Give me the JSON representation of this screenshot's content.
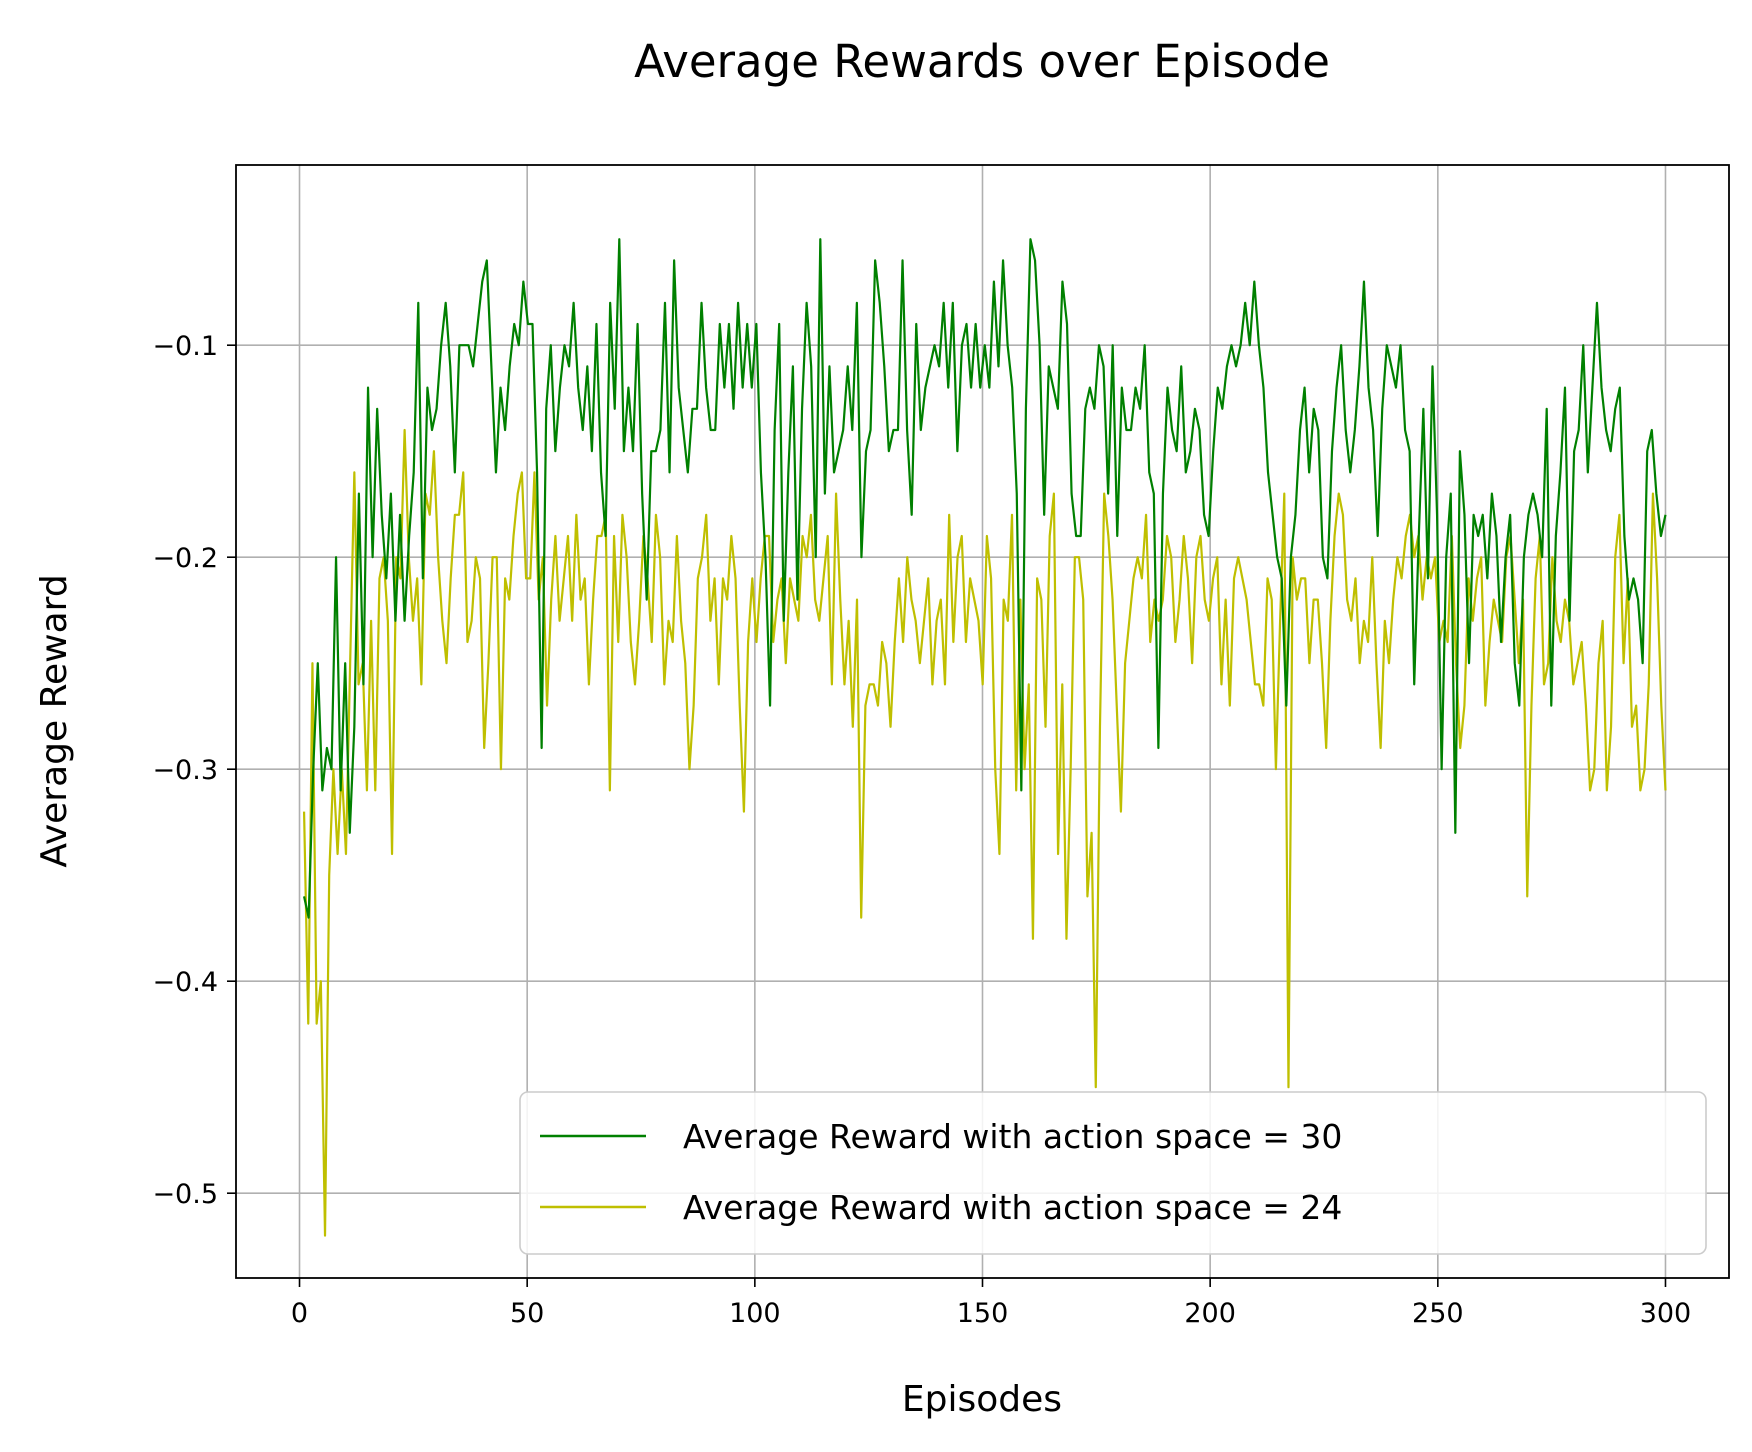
{
  "chart_data": {
    "type": "line",
    "title": "Average Rewards over Episode",
    "xlabel": "Episodes",
    "ylabel": "Average Reward",
    "xlim": [
      -13.95,
      313.95
    ],
    "ylim": [
      -0.54,
      -0.015
    ],
    "x_ticks": [
      0,
      50,
      100,
      150,
      200,
      250,
      300
    ],
    "x_tick_labels": [
      "0",
      "50",
      "100",
      "150",
      "200",
      "250",
      "300"
    ],
    "y_ticks": [
      -0.5,
      -0.4,
      -0.3,
      -0.2,
      -0.1
    ],
    "y_tick_labels": [
      "−0.5",
      "−0.4",
      "−0.3",
      "−0.2",
      "−0.1"
    ],
    "grid": true,
    "legend_position": "lower right",
    "x_start": 1,
    "series": [
      {
        "name": "Average Reward with action space = 30",
        "color": "#008000",
        "values": [
          -0.36,
          -0.37,
          -0.3,
          -0.25,
          -0.31,
          -0.29,
          -0.3,
          -0.2,
          -0.31,
          -0.25,
          -0.33,
          -0.28,
          -0.17,
          -0.26,
          -0.12,
          -0.2,
          -0.13,
          -0.18,
          -0.21,
          -0.17,
          -0.23,
          -0.18,
          -0.23,
          -0.19,
          -0.16,
          -0.08,
          -0.21,
          -0.12,
          -0.14,
          -0.13,
          -0.1,
          -0.08,
          -0.11,
          -0.16,
          -0.1,
          -0.1,
          -0.1,
          -0.11,
          -0.09,
          -0.07,
          -0.06,
          -0.11,
          -0.16,
          -0.12,
          -0.14,
          -0.11,
          -0.09,
          -0.1,
          -0.07,
          -0.09,
          -0.09,
          -0.16,
          -0.29,
          -0.13,
          -0.1,
          -0.15,
          -0.12,
          -0.1,
          -0.11,
          -0.08,
          -0.12,
          -0.14,
          -0.11,
          -0.15,
          -0.09,
          -0.16,
          -0.19,
          -0.08,
          -0.13,
          -0.05,
          -0.15,
          -0.12,
          -0.15,
          -0.09,
          -0.17,
          -0.22,
          -0.15,
          -0.15,
          -0.14,
          -0.08,
          -0.16,
          -0.06,
          -0.12,
          -0.14,
          -0.16,
          -0.13,
          -0.13,
          -0.08,
          -0.12,
          -0.14,
          -0.14,
          -0.09,
          -0.12,
          -0.09,
          -0.13,
          -0.08,
          -0.12,
          -0.09,
          -0.12,
          -0.09,
          -0.16,
          -0.2,
          -0.27,
          -0.14,
          -0.09,
          -0.23,
          -0.16,
          -0.11,
          -0.22,
          -0.13,
          -0.08,
          -0.11,
          -0.2,
          -0.05,
          -0.17,
          -0.11,
          -0.16,
          -0.15,
          -0.14,
          -0.11,
          -0.14,
          -0.08,
          -0.2,
          -0.15,
          -0.14,
          -0.06,
          -0.08,
          -0.11,
          -0.15,
          -0.14,
          -0.14,
          -0.06,
          -0.14,
          -0.18,
          -0.09,
          -0.14,
          -0.12,
          -0.11,
          -0.1,
          -0.11,
          -0.08,
          -0.12,
          -0.08,
          -0.15,
          -0.1,
          -0.09,
          -0.12,
          -0.09,
          -0.12,
          -0.1,
          -0.12,
          -0.07,
          -0.11,
          -0.06,
          -0.1,
          -0.12,
          -0.17,
          -0.31,
          -0.13,
          -0.05,
          -0.06,
          -0.1,
          -0.18,
          -0.11,
          -0.12,
          -0.13,
          -0.07,
          -0.09,
          -0.17,
          -0.19,
          -0.19,
          -0.13,
          -0.12,
          -0.13,
          -0.1,
          -0.11,
          -0.17,
          -0.1,
          -0.19,
          -0.12,
          -0.14,
          -0.14,
          -0.12,
          -0.13,
          -0.1,
          -0.16,
          -0.17,
          -0.29,
          -0.17,
          -0.12,
          -0.14,
          -0.15,
          -0.11,
          -0.16,
          -0.15,
          -0.13,
          -0.14,
          -0.18,
          -0.19,
          -0.15,
          -0.12,
          -0.13,
          -0.11,
          -0.1,
          -0.11,
          -0.1,
          -0.08,
          -0.1,
          -0.07,
          -0.1,
          -0.12,
          -0.16,
          -0.18,
          -0.2,
          -0.21,
          -0.27,
          -0.2,
          -0.18,
          -0.14,
          -0.12,
          -0.16,
          -0.13,
          -0.14,
          -0.2,
          -0.21,
          -0.15,
          -0.12,
          -0.1,
          -0.14,
          -0.16,
          -0.14,
          -0.11,
          -0.07,
          -0.12,
          -0.14,
          -0.19,
          -0.13,
          -0.1,
          -0.11,
          -0.12,
          -0.1,
          -0.14,
          -0.15,
          -0.26,
          -0.19,
          -0.13,
          -0.21,
          -0.11,
          -0.18,
          -0.3,
          -0.2,
          -0.17,
          -0.33,
          -0.15,
          -0.18,
          -0.25,
          -0.18,
          -0.19,
          -0.18,
          -0.21,
          -0.17,
          -0.19,
          -0.24,
          -0.2,
          -0.18,
          -0.25,
          -0.27,
          -0.2,
          -0.18,
          -0.17,
          -0.18,
          -0.2,
          -0.13,
          -0.27,
          -0.19,
          -0.16,
          -0.12,
          -0.23,
          -0.15,
          -0.14,
          -0.1,
          -0.16,
          -0.12,
          -0.08,
          -0.12,
          -0.14,
          -0.15,
          -0.13,
          -0.12,
          -0.19,
          -0.22,
          -0.21,
          -0.22,
          -0.25,
          -0.15,
          -0.14,
          -0.17,
          -0.19,
          -0.18
        ]
      },
      {
        "name": "Average Reward with action space = 24",
        "color": "#bfbf00",
        "values": [
          -0.32,
          -0.42,
          -0.25,
          -0.42,
          -0.4,
          -0.52,
          -0.35,
          -0.3,
          -0.34,
          -0.3,
          -0.34,
          -0.25,
          -0.16,
          -0.26,
          -0.25,
          -0.31,
          -0.23,
          -0.31,
          -0.21,
          -0.2,
          -0.23,
          -0.34,
          -0.2,
          -0.21,
          -0.14,
          -0.2,
          -0.23,
          -0.21,
          -0.26,
          -0.17,
          -0.18,
          -0.15,
          -0.2,
          -0.23,
          -0.25,
          -0.21,
          -0.18,
          -0.18,
          -0.16,
          -0.24,
          -0.23,
          -0.2,
          -0.21,
          -0.29,
          -0.25,
          -0.2,
          -0.2,
          -0.3,
          -0.21,
          -0.22,
          -0.19,
          -0.17,
          -0.16,
          -0.21,
          -0.21,
          -0.16,
          -0.22,
          -0.2,
          -0.27,
          -0.22,
          -0.19,
          -0.23,
          -0.21,
          -0.19,
          -0.23,
          -0.18,
          -0.22,
          -0.21,
          -0.26,
          -0.22,
          -0.19,
          -0.19,
          -0.18,
          -0.31,
          -0.19,
          -0.24,
          -0.18,
          -0.2,
          -0.24,
          -0.26,
          -0.23,
          -0.19,
          -0.21,
          -0.24,
          -0.18,
          -0.2,
          -0.26,
          -0.23,
          -0.24,
          -0.19,
          -0.23,
          -0.25,
          -0.3,
          -0.27,
          -0.21,
          -0.2,
          -0.18,
          -0.23,
          -0.21,
          -0.26,
          -0.21,
          -0.22,
          -0.19,
          -0.21,
          -0.27,
          -0.32,
          -0.24,
          -0.21,
          -0.24,
          -0.21,
          -0.19,
          -0.19,
          -0.24,
          -0.22,
          -0.21,
          -0.25,
          -0.21,
          -0.22,
          -0.23,
          -0.19,
          -0.2,
          -0.18,
          -0.22,
          -0.23,
          -0.21,
          -0.19,
          -0.26,
          -0.17,
          -0.22,
          -0.26,
          -0.23,
          -0.28,
          -0.22,
          -0.37,
          -0.27,
          -0.26,
          -0.26,
          -0.27,
          -0.24,
          -0.25,
          -0.28,
          -0.24,
          -0.21,
          -0.24,
          -0.2,
          -0.22,
          -0.23,
          -0.25,
          -0.23,
          -0.21,
          -0.26,
          -0.23,
          -0.22,
          -0.26,
          -0.18,
          -0.24,
          -0.2,
          -0.19,
          -0.24,
          -0.21,
          -0.22,
          -0.23,
          -0.26,
          -0.19,
          -0.21,
          -0.3,
          -0.34,
          -0.22,
          -0.23,
          -0.18,
          -0.31,
          -0.22,
          -0.3,
          -0.26,
          -0.38,
          -0.21,
          -0.22,
          -0.28,
          -0.19,
          -0.17,
          -0.34,
          -0.26,
          -0.38,
          -0.3,
          -0.2,
          -0.2,
          -0.22,
          -0.36,
          -0.33,
          -0.45,
          -0.28,
          -0.17,
          -0.19,
          -0.22,
          -0.27,
          -0.32,
          -0.25,
          -0.23,
          -0.21,
          -0.2,
          -0.21,
          -0.18,
          -0.24,
          -0.22,
          -0.23,
          -0.22,
          -0.19,
          -0.2,
          -0.24,
          -0.22,
          -0.19,
          -0.21,
          -0.25,
          -0.2,
          -0.19,
          -0.22,
          -0.23,
          -0.21,
          -0.2,
          -0.26,
          -0.22,
          -0.27,
          -0.21,
          -0.2,
          -0.21,
          -0.22,
          -0.24,
          -0.26,
          -0.26,
          -0.27,
          -0.21,
          -0.22,
          -0.3,
          -0.23,
          -0.17,
          -0.45,
          -0.2,
          -0.22,
          -0.21,
          -0.21,
          -0.25,
          -0.22,
          -0.22,
          -0.25,
          -0.29,
          -0.23,
          -0.19,
          -0.17,
          -0.18,
          -0.22,
          -0.23,
          -0.21,
          -0.25,
          -0.23,
          -0.24,
          -0.2,
          -0.25,
          -0.29,
          -0.23,
          -0.25,
          -0.22,
          -0.2,
          -0.21,
          -0.19,
          -0.18,
          -0.2,
          -0.19,
          -0.22,
          -0.2,
          -0.21,
          -0.2,
          -0.24,
          -0.23,
          -0.24,
          -0.19,
          -0.25,
          -0.29,
          -0.27,
          -0.21,
          -0.23,
          -0.21,
          -0.2,
          -0.27,
          -0.24,
          -0.22,
          -0.23,
          -0.24,
          -0.2,
          -0.19,
          -0.22,
          -0.25,
          -0.22,
          -0.36,
          -0.27,
          -0.21,
          -0.19,
          -0.26,
          -0.25,
          -0.2,
          -0.23,
          -0.24,
          -0.22,
          -0.23,
          -0.26,
          -0.25,
          -0.24,
          -0.27,
          -0.31,
          -0.3,
          -0.25,
          -0.23,
          -0.31,
          -0.28,
          -0.2,
          -0.18,
          -0.25,
          -0.21,
          -0.28,
          -0.27,
          -0.31,
          -0.3,
          -0.26,
          -0.17,
          -0.21,
          -0.27,
          -0.31
        ]
      }
    ]
  }
}
